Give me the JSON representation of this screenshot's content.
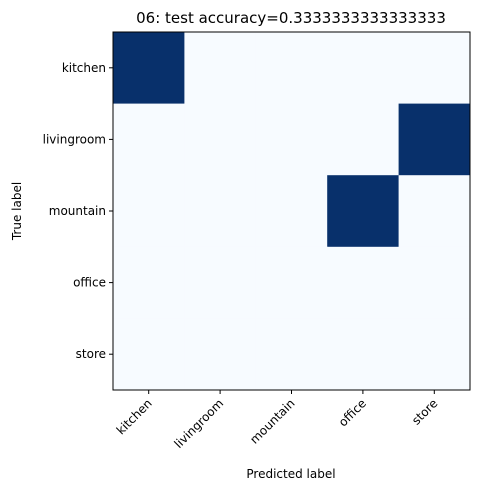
{
  "chart_data": {
    "type": "heatmap",
    "title": "06: test accuracy=0.3333333333333333",
    "xlabel": "Predicted label",
    "ylabel": "True label",
    "x_categories": [
      "kitchen",
      "livingroom",
      "mountain",
      "office",
      "store"
    ],
    "y_categories": [
      "kitchen",
      "livingroom",
      "mountain",
      "office",
      "store"
    ],
    "matrix": [
      [
        1,
        0,
        0,
        0,
        0
      ],
      [
        0,
        0,
        0,
        0,
        1
      ],
      [
        0,
        0,
        0,
        1,
        0
      ],
      [
        0,
        0,
        0,
        0,
        0
      ],
      [
        0,
        0,
        0,
        0,
        0
      ]
    ],
    "value_range": [
      0,
      1
    ],
    "colormap": {
      "low": "#f7fbff",
      "high": "#08306b"
    },
    "grid": false
  }
}
